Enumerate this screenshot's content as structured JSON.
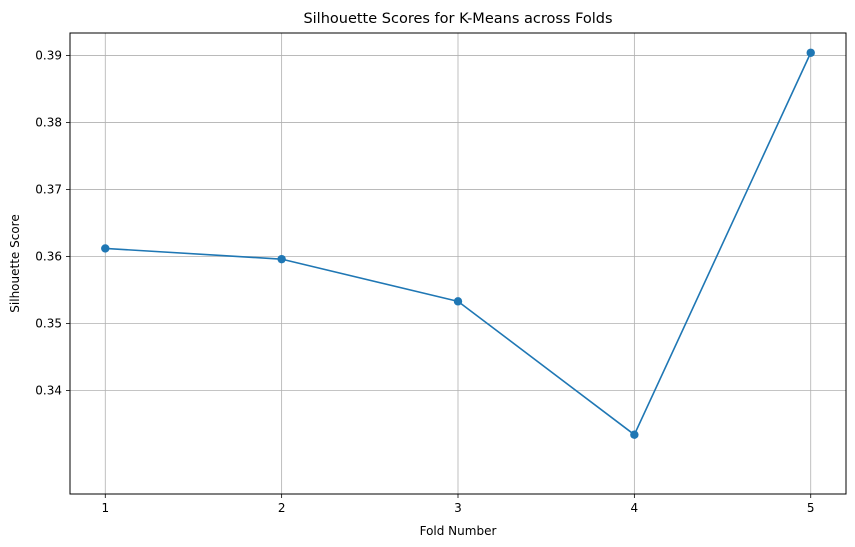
{
  "chart_data": {
    "type": "line",
    "title": "Silhouette Scores for K-Means across Folds",
    "xlabel": "Fold Number",
    "ylabel": "Silhouette Score",
    "x": [
      1,
      2,
      3,
      4,
      5
    ],
    "x_ticks": [
      "1",
      "2",
      "3",
      "4",
      "5"
    ],
    "xlim": [
      0.8,
      5.2
    ],
    "y_ticks": [
      "0.34",
      "0.35",
      "0.36",
      "0.37",
      "0.38",
      "0.39"
    ],
    "ylim": [
      0.32455,
      0.39335
    ],
    "series": [
      {
        "values": [
          0.3612,
          0.3596,
          0.3533,
          0.3334,
          0.3904
        ],
        "marker": "circle",
        "color": "#1f77b4"
      }
    ],
    "grid": true,
    "legend": "none"
  }
}
